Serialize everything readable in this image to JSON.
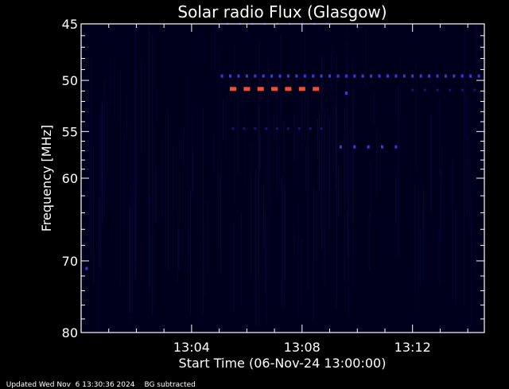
{
  "chart_data": {
    "type": "heatmap",
    "title": "Solar radio Flux (Glasgow)",
    "xlabel": "Start Time (06-Nov-24 13:00:00)",
    "ylabel": "Frequency [MHz]",
    "x_unit": "minutes after 13:00",
    "xlim": [
      0,
      14.6
    ],
    "ylim": [
      45,
      80
    ],
    "yscale": "log",
    "x_ticks": [
      {
        "value": 4,
        "label": "13:04"
      },
      {
        "value": 8,
        "label": "13:08"
      },
      {
        "value": 12,
        "label": "13:12"
      }
    ],
    "y_ticks": [
      {
        "value": 45,
        "label": "45"
      },
      {
        "value": 50,
        "label": "50"
      },
      {
        "value": 55,
        "label": "55"
      },
      {
        "value": 60,
        "label": "60"
      },
      {
        "value": 70,
        "label": "70"
      },
      {
        "value": 80,
        "label": "80"
      }
    ],
    "y_minor_ticks": [
      46,
      47,
      48,
      49,
      51,
      52,
      53,
      54,
      56,
      57,
      58,
      59,
      62,
      64,
      66,
      68,
      72,
      74,
      76,
      78
    ],
    "x_minor_ticks": [
      1,
      2,
      3,
      5,
      6,
      7,
      9,
      10,
      11,
      13,
      14
    ],
    "colors": {
      "background": "#000000",
      "axes": "#ffffff",
      "low": "#14147a",
      "mid": "#3a3ad6",
      "high": "#ff4a2a"
    },
    "features": [
      {
        "freq": 50.8,
        "t_start": 5.5,
        "t_end": 8.7,
        "step": 0.5,
        "intensity": "high"
      },
      {
        "freq": 49.6,
        "t_start": 5.1,
        "t_end": 14.5,
        "step": 0.3,
        "intensity": "mid"
      },
      {
        "freq": 45.0,
        "t_start": 5.3,
        "t_end": 9.0,
        "step": 0.45,
        "intensity": "low"
      },
      {
        "freq": 54.7,
        "t_start": 5.5,
        "t_end": 8.7,
        "step": 0.4,
        "intensity": "low"
      },
      {
        "freq": 56.6,
        "t_start": 9.4,
        "t_end": 11.6,
        "step": 0.5,
        "intensity": "mid"
      },
      {
        "freq": 50.9,
        "t_start": 12.0,
        "t_end": 14.4,
        "step": 0.45,
        "intensity": "low"
      },
      {
        "freq": 51.2,
        "t_start": 9.6,
        "t_end": 9.6,
        "step": 1,
        "intensity": "mid"
      },
      {
        "freq": 71.0,
        "t_start": 0.2,
        "t_end": 0.2,
        "step": 1,
        "intensity": "mid"
      }
    ]
  },
  "footer": {
    "updated": "Updated Wed Nov  6 13:30:36 2024",
    "note": "BG subtracted"
  }
}
